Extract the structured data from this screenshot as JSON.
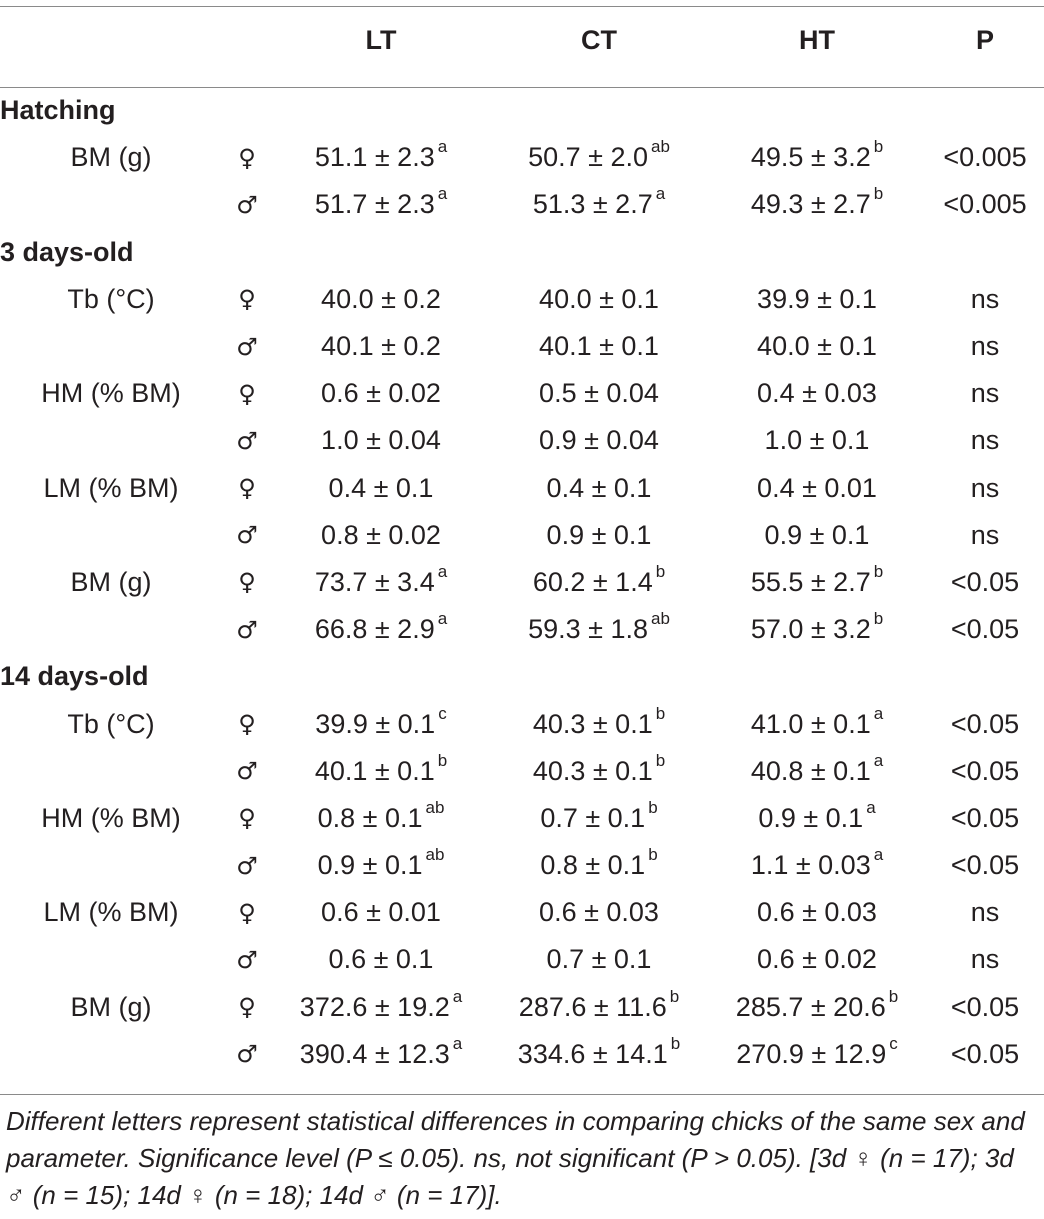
{
  "columns": {
    "param": "",
    "sex": "",
    "lt": "LT",
    "ct": "CT",
    "ht": "HT",
    "p": "P"
  },
  "sections": [
    {
      "title": "Hatching",
      "rows": [
        {
          "param": "BM (g)",
          "sex": "♀",
          "lt": "51.1 ± 2.3",
          "lt_sup": "a",
          "ct": "50.7 ± 2.0",
          "ct_sup": "ab",
          "ht": "49.5 ± 3.2",
          "ht_sup": "b",
          "p": "<0.005"
        },
        {
          "param": "",
          "sex": "♂",
          "lt": "51.7 ± 2.3",
          "lt_sup": "a",
          "ct": "51.3 ± 2.7",
          "ct_sup": "a",
          "ht": "49.3 ± 2.7",
          "ht_sup": "b",
          "p": "<0.005"
        }
      ]
    },
    {
      "title": "3 days-old",
      "rows": [
        {
          "param": "Tb (°C)",
          "sex": "♀",
          "lt": "40.0 ± 0.2",
          "lt_sup": "",
          "ct": "40.0 ± 0.1",
          "ct_sup": "",
          "ht": "39.9 ± 0.1",
          "ht_sup": "",
          "p": "ns"
        },
        {
          "param": "",
          "sex": "♂",
          "lt": "40.1 ± 0.2",
          "lt_sup": "",
          "ct": "40.1 ± 0.1",
          "ct_sup": "",
          "ht": "40.0 ± 0.1",
          "ht_sup": "",
          "p": "ns"
        },
        {
          "param": "HM (% BM)",
          "sex": "♀",
          "lt": "0.6 ± 0.02",
          "lt_sup": "",
          "ct": "0.5 ± 0.04",
          "ct_sup": "",
          "ht": "0.4 ± 0.03",
          "ht_sup": "",
          "p": "ns"
        },
        {
          "param": "",
          "sex": "♂",
          "lt": "1.0 ± 0.04",
          "lt_sup": "",
          "ct": "0.9 ± 0.04",
          "ct_sup": "",
          "ht": "1.0 ± 0.1",
          "ht_sup": "",
          "p": "ns"
        },
        {
          "param": "LM (% BM)",
          "sex": "♀",
          "lt": "0.4 ± 0.1",
          "lt_sup": "",
          "ct": "0.4 ± 0.1",
          "ct_sup": "",
          "ht": "0.4 ± 0.01",
          "ht_sup": "",
          "p": "ns"
        },
        {
          "param": "",
          "sex": "♂",
          "lt": "0.8 ± 0.02",
          "lt_sup": "",
          "ct": "0.9 ± 0.1",
          "ct_sup": "",
          "ht": "0.9 ± 0.1",
          "ht_sup": "",
          "p": "ns"
        },
        {
          "param": "BM (g)",
          "sex": "♀",
          "lt": "73.7 ± 3.4",
          "lt_sup": "a",
          "ct": "60.2 ± 1.4",
          "ct_sup": "b",
          "ht": "55.5 ± 2.7",
          "ht_sup": "b",
          "p": "<0.05"
        },
        {
          "param": "",
          "sex": "♂",
          "lt": "66.8 ± 2.9",
          "lt_sup": "a",
          "ct": "59.3 ± 1.8",
          "ct_sup": "ab",
          "ht": "57.0 ± 3.2",
          "ht_sup": "b",
          "p": "<0.05"
        }
      ]
    },
    {
      "title": "14 days-old",
      "rows": [
        {
          "param": "Tb (°C)",
          "sex": "♀",
          "lt": "39.9 ± 0.1",
          "lt_sup": "c",
          "ct": "40.3 ± 0.1",
          "ct_sup": "b",
          "ht": "41.0 ± 0.1",
          "ht_sup": "a",
          "p": "<0.05"
        },
        {
          "param": "",
          "sex": "♂",
          "lt": "40.1 ± 0.1",
          "lt_sup": "b",
          "ct": "40.3 ± 0.1",
          "ct_sup": "b",
          "ht": "40.8 ± 0.1",
          "ht_sup": "a",
          "p": "<0.05"
        },
        {
          "param": "HM (% BM)",
          "sex": "♀",
          "lt": "0.8 ± 0.1",
          "lt_sup": "ab",
          "ct": "0.7 ± 0.1",
          "ct_sup": "b",
          "ht": "0.9 ± 0.1",
          "ht_sup": "a",
          "p": "<0.05"
        },
        {
          "param": "",
          "sex": "♂",
          "lt": "0.9 ± 0.1",
          "lt_sup": "ab",
          "ct": "0.8 ± 0.1",
          "ct_sup": "b",
          "ht": "1.1 ± 0.03",
          "ht_sup": "a",
          "p": "<0.05"
        },
        {
          "param": "LM (% BM)",
          "sex": "♀",
          "lt": "0.6 ± 0.01",
          "lt_sup": "",
          "ct": "0.6 ± 0.03",
          "ct_sup": "",
          "ht": "0.6 ± 0.03",
          "ht_sup": "",
          "p": "ns"
        },
        {
          "param": "",
          "sex": "♂",
          "lt": "0.6 ± 0.1",
          "lt_sup": "",
          "ct": "0.7 ± 0.1",
          "ct_sup": "",
          "ht": "0.6 ± 0.02",
          "ht_sup": "",
          "p": "ns"
        },
        {
          "param": "BM (g)",
          "sex": "♀",
          "lt": "372.6 ± 19.2",
          "lt_sup": "a",
          "ct": "287.6 ± 11.6",
          "ct_sup": "b",
          "ht": "285.7 ± 20.6",
          "ht_sup": "b",
          "p": "<0.05"
        },
        {
          "param": "",
          "sex": "♂",
          "lt": "390.4 ± 12.3",
          "lt_sup": "a",
          "ct": "334.6 ± 14.1",
          "ct_sup": "b",
          "ht": "270.9 ± 12.9",
          "ht_sup": "c",
          "p": "<0.05"
        }
      ]
    }
  ],
  "footnote": "Different letters represent statistical differences in comparing chicks of the same sex and parameter. Significance level (P ≤ 0.05). ns, not significant (P > 0.05). [3d ♀ (n = 17); 3d ♂ (n = 15); 14d ♀ (n = 18); 14d ♂ (n = 17)]."
}
